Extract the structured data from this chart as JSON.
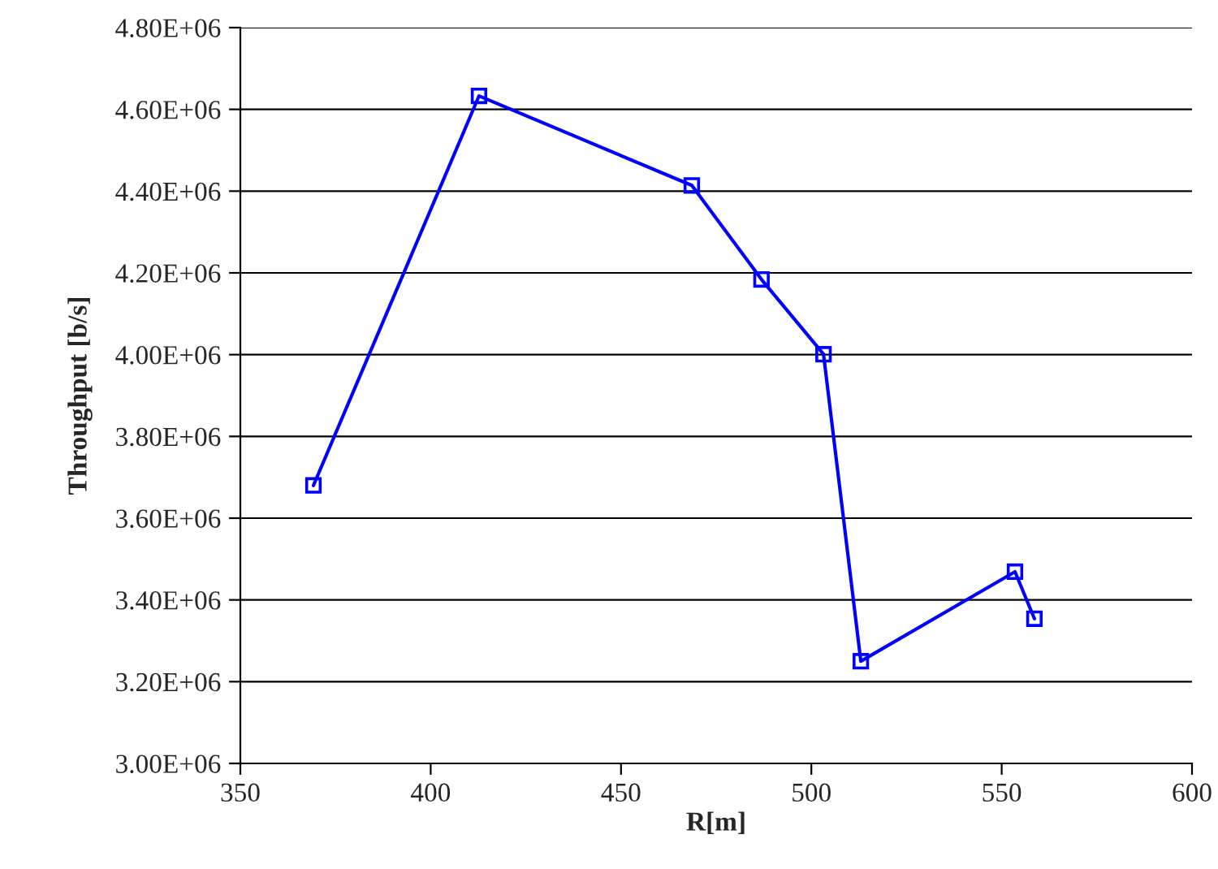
{
  "chart_data": {
    "type": "line",
    "xlabel": "R[m]",
    "ylabel": "Throughput [b/s]",
    "x": [
      369.2,
      412.7,
      468.6,
      486.9,
      503.2,
      513.0,
      553.5,
      558.6
    ],
    "series": [
      {
        "color": "#0000ff",
        "values": [
          3680000,
          4633000,
          4414000,
          4184000,
          4001000,
          3250000,
          3469000,
          3354000
        ]
      }
    ],
    "xlim": [
      350,
      600
    ],
    "xticks": [
      350,
      400,
      450,
      500,
      550,
      600
    ],
    "ylim": [
      3000000,
      4800000
    ],
    "yticks": [
      {
        "value": 3000000,
        "label": "3.00E+06"
      },
      {
        "value": 3200000,
        "label": "3.20E+06"
      },
      {
        "value": 3400000,
        "label": "3.40E+06"
      },
      {
        "value": 3600000,
        "label": "3.60E+06"
      },
      {
        "value": 3800000,
        "label": "3.80E+06"
      },
      {
        "value": 4000000,
        "label": "4.00E+06"
      },
      {
        "value": 4200000,
        "label": "4.20E+06"
      },
      {
        "value": 4400000,
        "label": "4.40E+06"
      },
      {
        "value": 4600000,
        "label": "4.60E+06"
      },
      {
        "value": 4800000,
        "label": "4.80E+06"
      }
    ],
    "grid": "y",
    "marker": "square",
    "line_style": "solid"
  }
}
